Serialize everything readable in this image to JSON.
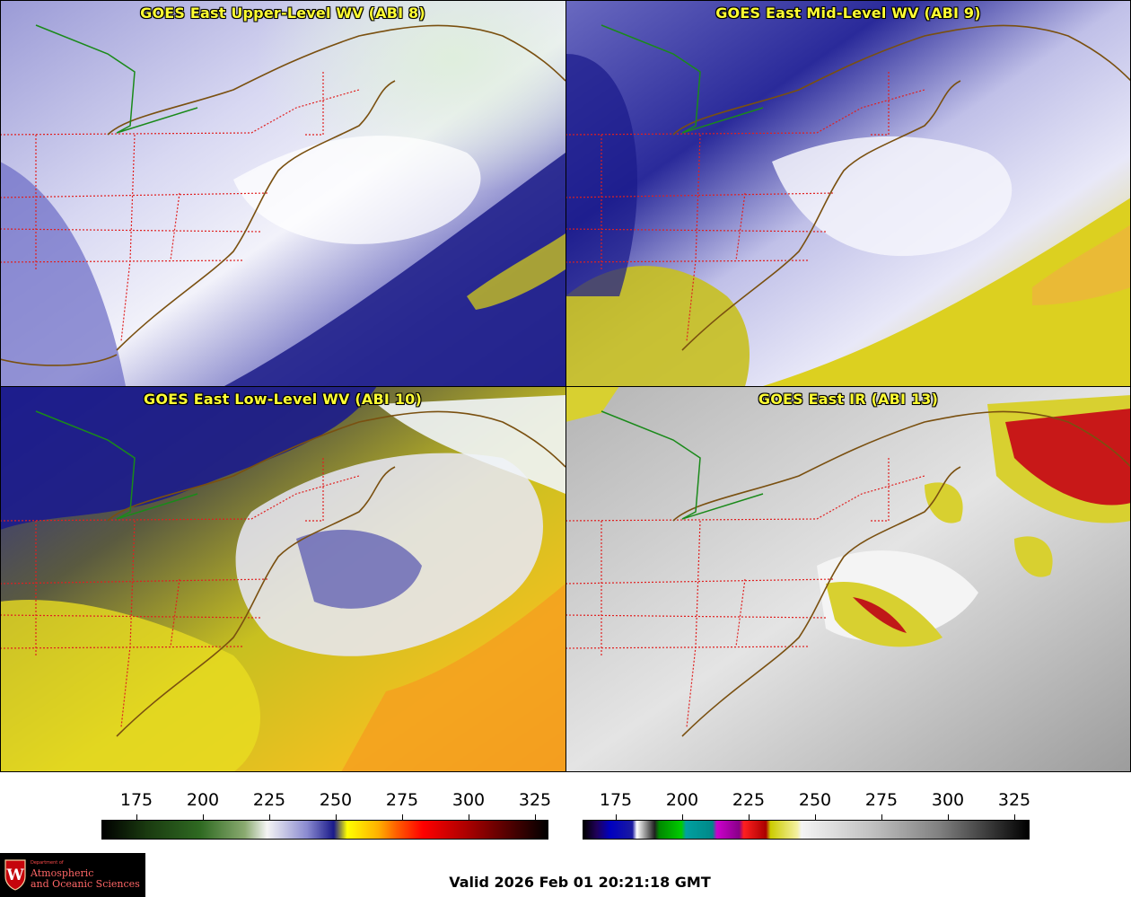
{
  "panels": [
    {
      "title": "GOES East Upper-Level WV (ABI 8)"
    },
    {
      "title": "GOES East Mid-Level WV (ABI 9)"
    },
    {
      "title": "GOES East Low-Level WV (ABI 10)"
    },
    {
      "title": "GOES East IR (ABI 13)"
    }
  ],
  "colorbars": [
    {
      "name": "wv-colorbar",
      "ticks": [
        "175",
        "200",
        "225",
        "250",
        "275",
        "300",
        "325"
      ]
    },
    {
      "name": "ir-colorbar",
      "ticks": [
        "175",
        "200",
        "225",
        "250",
        "275",
        "300",
        "325"
      ]
    }
  ],
  "logo": {
    "dept": "Department of",
    "line1": "Atmospheric",
    "line2": "and Oceanic Sciences",
    "letter": "W"
  },
  "valid_time": "Valid 2026 Feb 01 20:21:18 GMT",
  "colors": {
    "title_text": "#ffff33",
    "state_borders": "#e02020",
    "coastline": "#7a5010",
    "lake_boundary": "#1a8a1a"
  }
}
